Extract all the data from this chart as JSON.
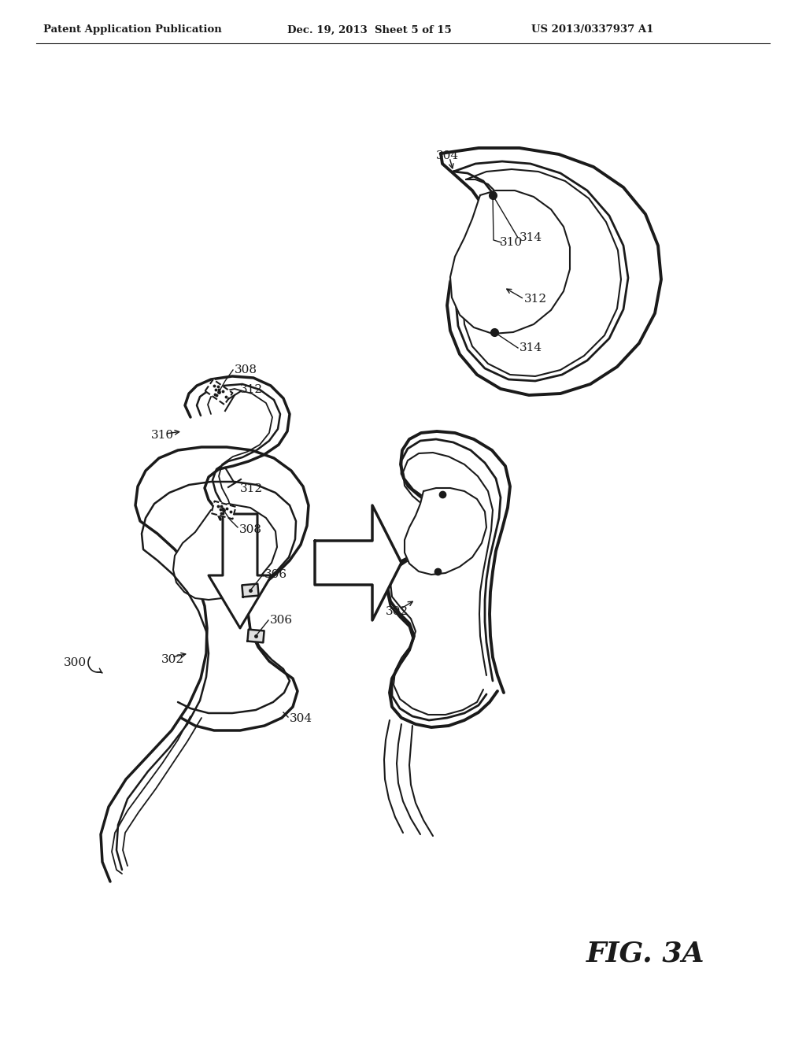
{
  "background_color": "#ffffff",
  "header_left": "Patent Application Publication",
  "header_mid": "Dec. 19, 2013  Sheet 5 of 15",
  "header_right": "US 2013/0337937 A1",
  "figure_label": "FIG. 3A",
  "line_color": "#1a1a1a",
  "lw_outer": 2.5,
  "lw_inner": 1.8,
  "lw_thin": 1.2
}
